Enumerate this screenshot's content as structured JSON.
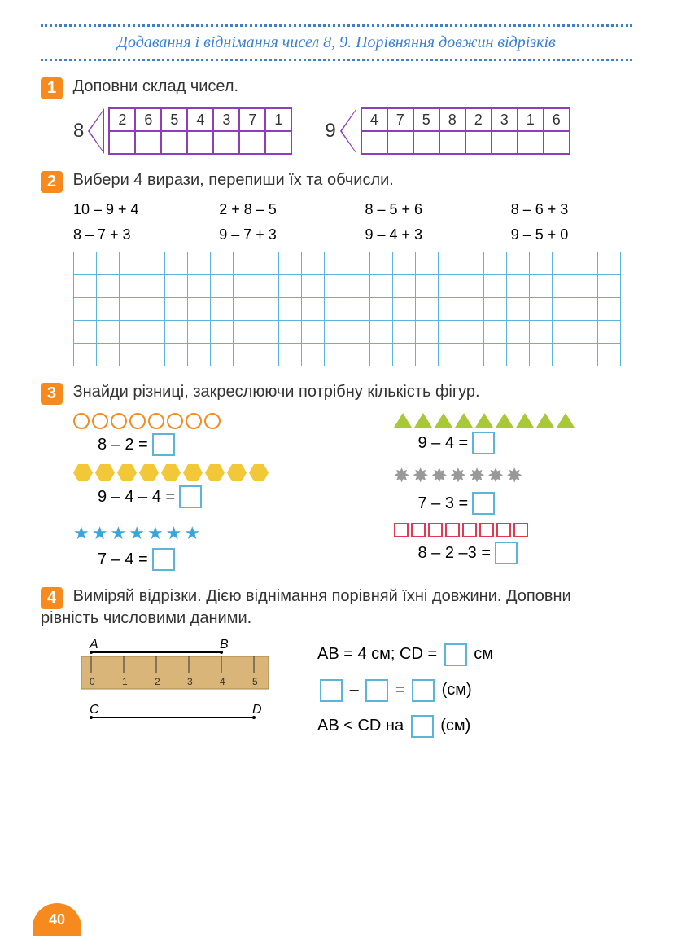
{
  "header": {
    "title": "Додавання і віднімання чисел 8, 9. Порівняння довжин відрізків"
  },
  "task1": {
    "num": "1",
    "text": "Доповни склад чисел.",
    "groups": [
      {
        "label": "8",
        "top": [
          "2",
          "6",
          "5",
          "4",
          "3",
          "7",
          "1"
        ],
        "bottom": [
          "",
          "",
          "",
          "",
          "",
          "",
          ""
        ]
      },
      {
        "label": "9",
        "top": [
          "4",
          "7",
          "5",
          "8",
          "2",
          "3",
          "1",
          "6"
        ],
        "bottom": [
          "",
          "",
          "",
          "",
          "",
          "",
          "",
          ""
        ]
      }
    ]
  },
  "task2": {
    "num": "2",
    "text": "Вибери 4 вирази, перепиши їх та обчисли.",
    "expressions": [
      "10 – 9 + 4",
      "2 + 8 – 5",
      "8 – 5 + 6",
      "8 – 6 + 3",
      "8 – 7 + 3",
      "9 – 7 + 3",
      "9 – 4 + 3",
      "9 – 5 + 0"
    ],
    "grid": {
      "rows": 5,
      "cols": 24
    }
  },
  "task3": {
    "num": "3",
    "text": "Знайди різниці, закреслюючи потрібну кількість фігур.",
    "items": [
      {
        "shape": "circle",
        "count": 8,
        "eq": "8 – 2 ="
      },
      {
        "shape": "triangle",
        "count": 9,
        "eq": "9 – 4 ="
      },
      {
        "shape": "hexagon",
        "count": 9,
        "eq": "9 – 4 – 4 ="
      },
      {
        "shape": "star-gray",
        "count": 7,
        "eq": "7 – 3 ="
      },
      {
        "shape": "star-blue",
        "count": 7,
        "eq": "7 – 4 ="
      },
      {
        "shape": "square",
        "count": 8,
        "eq": "8 – 2 –3 ="
      }
    ]
  },
  "task4": {
    "num": "4",
    "text": "Виміряй відрізки. Дією віднімання порівняй їхні довжини. Доповни рівність числовими даними.",
    "segA": "A",
    "segB": "B",
    "segC": "C",
    "segD": "D",
    "line1_prefix": "AB = 4 см; CD =",
    "line1_suffix": "см",
    "line2_mid": "–",
    "line2_eq": "=",
    "line2_suffix": "(см)",
    "line3_prefix": "AB < CD на",
    "line3_suffix": "(см)",
    "ruler_ticks": [
      "0",
      "1",
      "2",
      "3",
      "4",
      "5"
    ]
  },
  "page_number": "40",
  "colors": {
    "orange": "#f68a1f",
    "blue": "#3b7fd4",
    "purple": "#8e3fb8",
    "lightblue": "#5ab5d9",
    "green": "#a8c837",
    "yellow": "#f2c838",
    "gray": "#999999",
    "red": "#e2394f"
  }
}
